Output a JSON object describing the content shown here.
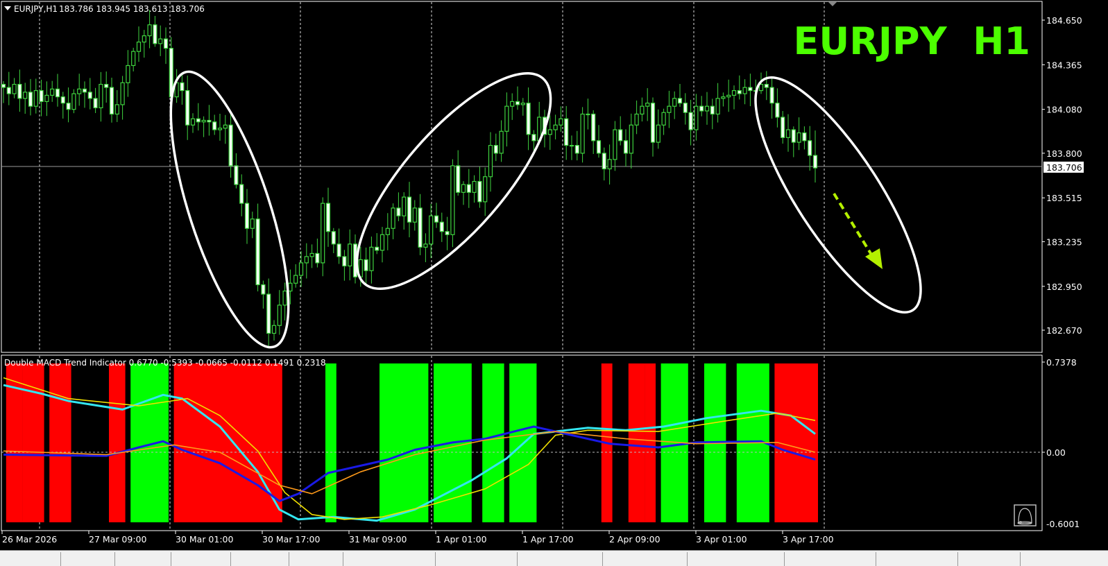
{
  "header": {
    "symbol_label": "EURJPY,H1",
    "ohlc_readout": "183.786 183.945 183.613 183.706",
    "overlay_title": "EURJPY  H1"
  },
  "indicator": {
    "label": "Double MACD Trend Indicator 0.6770 -0.5393 -0.0665 -0.0112 0.1491 0.2318",
    "scale_max_label": "0.7378",
    "scale_zero_label": "0.00",
    "scale_min_label": "-0.6001"
  },
  "colors": {
    "background": "#000000",
    "candle_outline": "#3fd43f",
    "bear_body": "#f2fff2",
    "bull_body": "#000000",
    "title": "#4cff00",
    "hist_bull": "#00ff00",
    "hist_bear": "#ff0000",
    "arrow": "#b4f000",
    "annotation": "#ffffff"
  },
  "chart_data": [
    {
      "type": "candlestick",
      "title": "EURJPY  H1",
      "symbol": "EURJPY",
      "timeframe": "H1",
      "y_ticks": [
        "184.650",
        "184.365",
        "184.080",
        "183.800",
        "183.515",
        "183.235",
        "182.950",
        "182.670"
      ],
      "ylim": [
        182.58,
        184.78
      ],
      "current_price_label": "183.706",
      "x_ticks": [
        "26 Mar 2026",
        "27 Mar 09:00",
        "30 Mar 01:00",
        "30 Mar 17:00",
        "31 Mar 09:00",
        "1 Apr 01:00",
        "1 Apr 17:00",
        "2 Apr 09:00",
        "3 Apr 01:00",
        "3 Apr 17:00"
      ],
      "grid": "vertical dashed",
      "last_candle": {
        "open": 183.786,
        "high": 183.945,
        "low": 183.613,
        "close": 183.706
      },
      "close": [
        184.22,
        184.18,
        184.24,
        184.15,
        184.19,
        184.1,
        184.2,
        184.13,
        184.17,
        184.21,
        184.16,
        184.12,
        184.08,
        184.18,
        184.21,
        184.19,
        184.15,
        184.09,
        184.24,
        184.22,
        184.05,
        184.11,
        184.25,
        184.36,
        184.45,
        184.51,
        184.55,
        184.62,
        184.5,
        184.53,
        184.47,
        184.16,
        184.25,
        184.2,
        183.98,
        184.02,
        184.0,
        184.01,
        184.0,
        183.95,
        183.96,
        183.98,
        183.72,
        183.6,
        183.48,
        183.32,
        183.38,
        182.96,
        182.9,
        182.65,
        182.7,
        182.83,
        182.92,
        182.97,
        183.02,
        183.1,
        183.14,
        183.16,
        183.1,
        183.48,
        183.3,
        183.22,
        183.14,
        183.08,
        183.22,
        183.01,
        183.12,
        183.05,
        183.2,
        183.18,
        183.28,
        183.32,
        183.45,
        183.4,
        183.52,
        183.36,
        183.45,
        183.2,
        183.22,
        183.4,
        183.36,
        183.3,
        183.28,
        183.72,
        183.55,
        183.6,
        183.55,
        183.62,
        183.49,
        183.65,
        183.85,
        183.8,
        183.94,
        184.1,
        184.13,
        184.11,
        184.12,
        183.92,
        183.88,
        184.03,
        183.92,
        183.95,
        183.98,
        184.02,
        183.85,
        183.85,
        183.8,
        184.05,
        184.05,
        183.88,
        183.8,
        183.7,
        183.76,
        183.95,
        183.88,
        183.8,
        183.98,
        184.05,
        184.1,
        184.12,
        183.87,
        183.98,
        184.06,
        184.1,
        184.15,
        184.12,
        184.06,
        183.95,
        184.1,
        184.07,
        184.1,
        184.05,
        184.15,
        184.16,
        184.17,
        184.2,
        184.18,
        184.22,
        184.2,
        184.2,
        184.24,
        184.22,
        184.12,
        184.03,
        183.9,
        183.95,
        183.87,
        183.93,
        183.88,
        183.786,
        183.706
      ]
    },
    {
      "type": "bar+line",
      "title": "Double MACD Trend Indicator",
      "ylim": [
        -0.6001,
        0.7378
      ],
      "histogram": [
        {
          "from": 1,
          "to": 3,
          "trend": "bear"
        },
        {
          "from": 4,
          "to": 7,
          "trend": "bear"
        },
        {
          "from": 9,
          "to": 12,
          "trend": "bear"
        },
        {
          "from": 20,
          "to": 22,
          "trend": "bear"
        },
        {
          "from": 24,
          "to": 30,
          "trend": "bull"
        },
        {
          "from": 32,
          "to": 51,
          "trend": "bear"
        },
        {
          "from": 60,
          "to": 61,
          "trend": "bull"
        },
        {
          "from": 70,
          "to": 78,
          "trend": "bull"
        },
        {
          "from": 80,
          "to": 86,
          "trend": "bull"
        },
        {
          "from": 89,
          "to": 92,
          "trend": "bull"
        },
        {
          "from": 94,
          "to": 98,
          "trend": "bull"
        },
        {
          "from": 111,
          "to": 112,
          "trend": "bear"
        },
        {
          "from": 116,
          "to": 118,
          "trend": "bear"
        },
        {
          "from": 119,
          "to": 120,
          "trend": "bear"
        },
        {
          "from": 122,
          "to": 126,
          "trend": "bull"
        },
        {
          "from": 130,
          "to": 133,
          "trend": "bull"
        },
        {
          "from": 136,
          "to": 139,
          "trend": "bull"
        },
        {
          "from": 140,
          "to": 141,
          "trend": "bull"
        },
        {
          "from": 143,
          "to": 150,
          "trend": "bear"
        }
      ],
      "series": [
        {
          "color": "#33e6f0",
          "points": [
            [
              0,
              0.55
            ],
            [
              7,
              0.48
            ],
            [
              12,
              0.42
            ],
            [
              22,
              0.35
            ],
            [
              29.5,
              0.47
            ],
            [
              33,
              0.44
            ],
            [
              40,
              0.21
            ],
            [
              47,
              -0.16
            ],
            [
              51,
              -0.47
            ],
            [
              54.5,
              -0.55
            ],
            [
              61,
              -0.53
            ],
            [
              69,
              -0.56
            ],
            [
              76,
              -0.47
            ],
            [
              86.5,
              -0.23
            ],
            [
              93,
              -0.05
            ],
            [
              98,
              0.15
            ],
            [
              108,
              0.2
            ],
            [
              115,
              0.18
            ],
            [
              122,
              0.21
            ],
            [
              130,
              0.28
            ],
            [
              140,
              0.34
            ],
            [
              145.5,
              0.3
            ],
            [
              150,
              0.15
            ]
          ]
        },
        {
          "color": "#f0e000",
          "points": [
            [
              0,
              0.61
            ],
            [
              12,
              0.44
            ],
            [
              25,
              0.38
            ],
            [
              34,
              0.44
            ],
            [
              40,
              0.3
            ],
            [
              47,
              0.01
            ],
            [
              52,
              -0.33
            ],
            [
              57,
              -0.51
            ],
            [
              63,
              -0.55
            ],
            [
              70,
              -0.53
            ],
            [
              79,
              -0.43
            ],
            [
              89,
              -0.3
            ],
            [
              97,
              -0.1
            ],
            [
              102,
              0.14
            ],
            [
              108,
              0.18
            ],
            [
              121,
              0.17
            ],
            [
              134,
              0.26
            ],
            [
              143,
              0.32
            ],
            [
              150,
              0.26
            ]
          ]
        },
        {
          "color": "#1a1ae6",
          "points": [
            [
              0,
              -0.02
            ],
            [
              19,
              -0.03
            ],
            [
              25,
              0.04
            ],
            [
              29.5,
              0.09
            ],
            [
              33,
              0.02
            ],
            [
              40,
              -0.09
            ],
            [
              47,
              -0.27
            ],
            [
              51,
              -0.4
            ],
            [
              54.5,
              -0.34
            ],
            [
              60,
              -0.17
            ],
            [
              65,
              -0.12
            ],
            [
              71,
              -0.06
            ],
            [
              76,
              0.02
            ],
            [
              83,
              0.08
            ],
            [
              89,
              0.11
            ],
            [
              98,
              0.21
            ],
            [
              105,
              0.14
            ],
            [
              112,
              0.07
            ],
            [
              121,
              0.04
            ],
            [
              128,
              0.08
            ],
            [
              140,
              0.09
            ],
            [
              144,
              0.02
            ],
            [
              150,
              -0.06
            ]
          ]
        },
        {
          "color": "#ff9a1a",
          "points": [
            [
              0,
              0.01
            ],
            [
              19,
              -0.02
            ],
            [
              31.5,
              0.06
            ],
            [
              40,
              0.0
            ],
            [
              51,
              -0.27
            ],
            [
              57,
              -0.34
            ],
            [
              66,
              -0.16
            ],
            [
              76,
              -0.02
            ],
            [
              89,
              0.1
            ],
            [
              102,
              0.17
            ],
            [
              115,
              0.11
            ],
            [
              128,
              0.07
            ],
            [
              143,
              0.08
            ],
            [
              150,
              0.0
            ]
          ]
        }
      ]
    }
  ]
}
